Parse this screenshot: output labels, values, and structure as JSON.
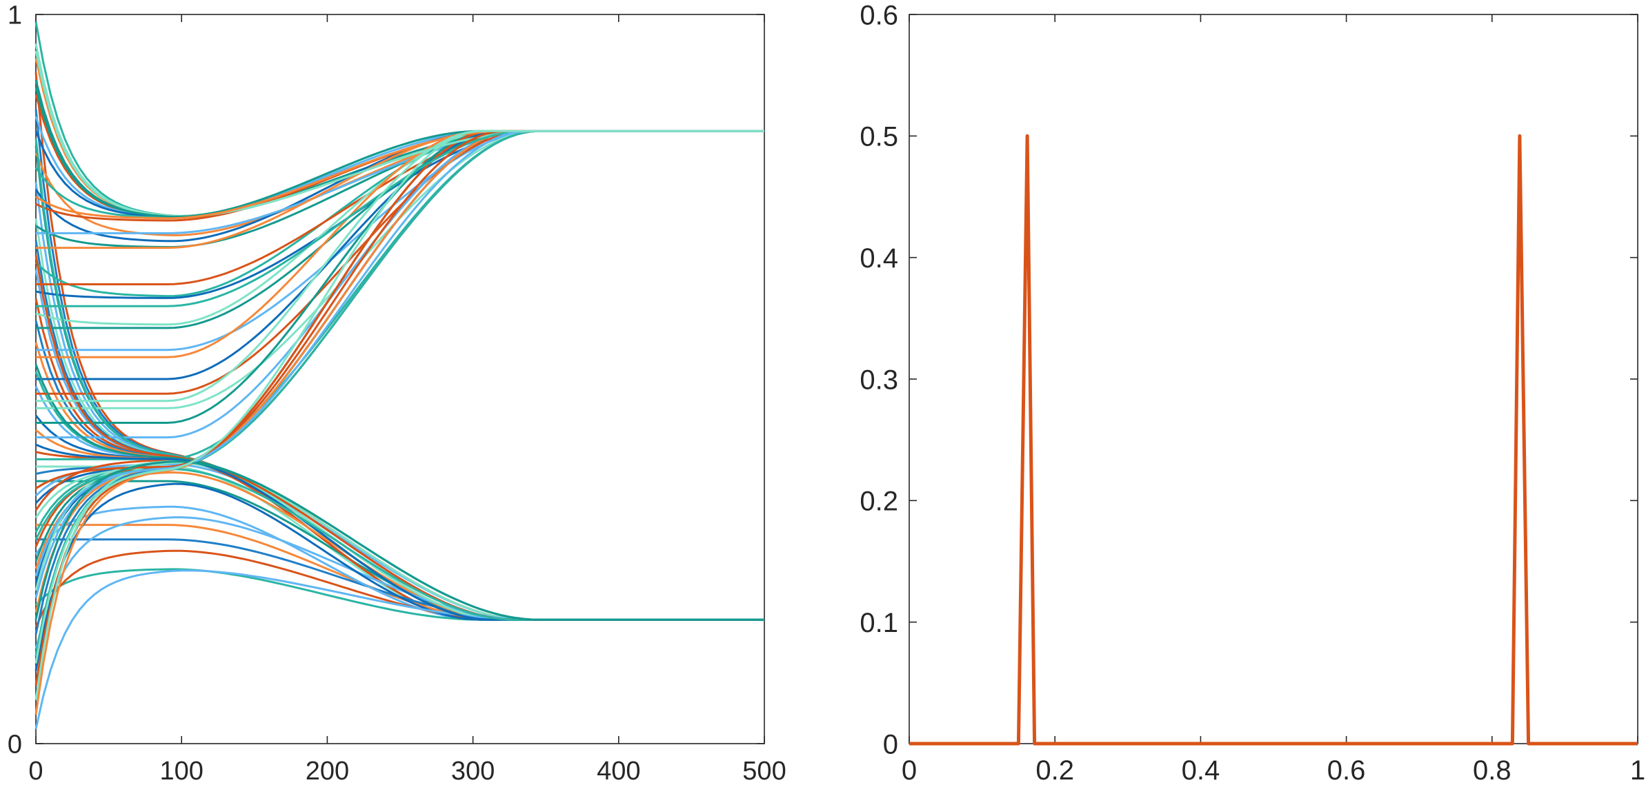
{
  "chart_data": [
    {
      "type": "line",
      "title": "",
      "xlabel": "",
      "ylabel": "",
      "xlim": [
        0,
        500
      ],
      "ylim": [
        0,
        1
      ],
      "xticks": [
        "0",
        "100",
        "200",
        "300",
        "400",
        "500"
      ],
      "yticks": [
        "0",
        "1"
      ],
      "grid": false,
      "legend": "none",
      "description_of_series": "about 100 trajectories starting between about 0.02 and 0.99 that split into two clusters and converge to about 0.84 and 0.17 by x≈330",
      "series": [
        {
          "start": 0.99,
          "cluster": "upper",
          "color": "#2ab5a4"
        },
        {
          "start": 0.96,
          "cluster": "upper",
          "color": "#7fe3c7"
        },
        {
          "start": 0.94,
          "cluster": "upper",
          "color": "#f5883a"
        },
        {
          "start": 0.92,
          "cluster": "lower",
          "color": "#d95319"
        },
        {
          "start": 0.91,
          "cluster": "upper",
          "color": "#159a8f"
        },
        {
          "start": 0.89,
          "cluster": "upper",
          "color": "#d95319"
        },
        {
          "start": 0.87,
          "cluster": "lower",
          "color": "#1f7fc7"
        },
        {
          "start": 0.86,
          "cluster": "upper",
          "color": "#5fb6f3"
        },
        {
          "start": 0.84,
          "cluster": "upper",
          "color": "#0e6cba"
        },
        {
          "start": 0.82,
          "cluster": "lower",
          "color": "#159a8f"
        },
        {
          "start": 0.81,
          "cluster": "upper",
          "color": "#f5883a"
        },
        {
          "start": 0.79,
          "cluster": "upper",
          "color": "#2ab5a4"
        },
        {
          "start": 0.77,
          "cluster": "lower",
          "color": "#5fb6f3"
        },
        {
          "start": 0.76,
          "cluster": "upper",
          "color": "#0e6cba"
        },
        {
          "start": 0.74,
          "cluster": "upper",
          "color": "#d95319"
        },
        {
          "start": 0.72,
          "cluster": "lower",
          "color": "#7fe3c7"
        },
        {
          "start": 0.71,
          "cluster": "upper",
          "color": "#159a8f"
        },
        {
          "start": 0.7,
          "cluster": "upper",
          "color": "#5fb6f3"
        },
        {
          "start": 0.69,
          "cluster": "lower",
          "color": "#1f7fc7"
        },
        {
          "start": 0.68,
          "cluster": "upper",
          "color": "#f5883a"
        },
        {
          "start": 0.66,
          "cluster": "upper",
          "color": "#2ab5a4"
        },
        {
          "start": 0.65,
          "cluster": "lower",
          "color": "#5fb6f3"
        },
        {
          "start": 0.63,
          "cluster": "upper",
          "color": "#d95319"
        },
        {
          "start": 0.62,
          "cluster": "upper",
          "color": "#0e6cba"
        },
        {
          "start": 0.61,
          "cluster": "lower",
          "color": "#d95319"
        },
        {
          "start": 0.59,
          "cluster": "upper",
          "color": "#7fe3c7"
        },
        {
          "start": 0.58,
          "cluster": "lower",
          "color": "#1f7fc7"
        },
        {
          "start": 0.57,
          "cluster": "upper",
          "color": "#159a8f"
        },
        {
          "start": 0.55,
          "cluster": "lower",
          "color": "#f5883a"
        },
        {
          "start": 0.54,
          "cluster": "upper",
          "color": "#5fb6f3"
        },
        {
          "start": 0.53,
          "cluster": "upper",
          "color": "#f5883a"
        },
        {
          "start": 0.51,
          "cluster": "lower",
          "color": "#2ab5a4"
        },
        {
          "start": 0.5,
          "cluster": "upper",
          "color": "#0e6cba"
        },
        {
          "start": 0.49,
          "cluster": "lower",
          "color": "#5fb6f3"
        },
        {
          "start": 0.48,
          "cluster": "upper",
          "color": "#d95319"
        },
        {
          "start": 0.46,
          "cluster": "upper",
          "color": "#7fe3c7"
        },
        {
          "start": 0.45,
          "cluster": "lower",
          "color": "#0e6cba"
        },
        {
          "start": 0.44,
          "cluster": "upper",
          "color": "#159a8f"
        },
        {
          "start": 0.43,
          "cluster": "lower",
          "color": "#f5883a"
        },
        {
          "start": 0.42,
          "cluster": "upper",
          "color": "#5fb6f3"
        },
        {
          "start": 0.4,
          "cluster": "lower",
          "color": "#d95319"
        },
        {
          "start": 0.39,
          "cluster": "upper",
          "color": "#2ab5a4"
        },
        {
          "start": 0.38,
          "cluster": "lower",
          "color": "#7fe3c7"
        },
        {
          "start": 0.37,
          "cluster": "upper",
          "color": "#1f7fc7"
        },
        {
          "start": 0.36,
          "cluster": "lower",
          "color": "#159a8f"
        },
        {
          "start": 0.35,
          "cluster": "upper",
          "color": "#f5883a"
        },
        {
          "start": 0.34,
          "cluster": "lower",
          "color": "#5fb6f3"
        },
        {
          "start": 0.33,
          "cluster": "upper",
          "color": "#0e6cba"
        },
        {
          "start": 0.32,
          "cluster": "lower",
          "color": "#d95319"
        },
        {
          "start": 0.31,
          "cluster": "upper",
          "color": "#7fe3c7"
        },
        {
          "start": 0.3,
          "cluster": "lower",
          "color": "#f5883a"
        },
        {
          "start": 0.29,
          "cluster": "upper",
          "color": "#2ab5a4"
        },
        {
          "start": 0.28,
          "cluster": "lower",
          "color": "#1f7fc7"
        },
        {
          "start": 0.27,
          "cluster": "upper",
          "color": "#d95319"
        },
        {
          "start": 0.26,
          "cluster": "lower",
          "color": "#5fb6f3"
        },
        {
          "start": 0.25,
          "cluster": "upper",
          "color": "#159a8f"
        },
        {
          "start": 0.24,
          "cluster": "lower",
          "color": "#f5883a"
        },
        {
          "start": 0.22,
          "cluster": "upper",
          "color": "#0e6cba"
        },
        {
          "start": 0.21,
          "cluster": "lower",
          "color": "#7fe3c7"
        },
        {
          "start": 0.2,
          "cluster": "upper",
          "color": "#5fb6f3"
        },
        {
          "start": 0.19,
          "cluster": "lower",
          "color": "#2ab5a4"
        },
        {
          "start": 0.18,
          "cluster": "upper",
          "color": "#f5883a"
        },
        {
          "start": 0.16,
          "cluster": "lower",
          "color": "#d95319"
        },
        {
          "start": 0.15,
          "cluster": "upper",
          "color": "#1f7fc7"
        },
        {
          "start": 0.13,
          "cluster": "lower",
          "color": "#5fb6f3"
        },
        {
          "start": 0.12,
          "cluster": "upper",
          "color": "#2ab5a4"
        },
        {
          "start": 0.1,
          "cluster": "lower",
          "color": "#0e6cba"
        },
        {
          "start": 0.08,
          "cluster": "upper",
          "color": "#d95319"
        },
        {
          "start": 0.06,
          "cluster": "lower",
          "color": "#7fe3c7"
        },
        {
          "start": 0.04,
          "cluster": "upper",
          "color": "#f5883a"
        },
        {
          "start": 0.02,
          "cluster": "lower",
          "color": "#5fb6f3"
        },
        {
          "start": 0.95,
          "cluster": "upper",
          "color": "#7fe3c7"
        },
        {
          "start": 0.9,
          "cluster": "upper",
          "color": "#159a8f"
        },
        {
          "start": 0.83,
          "cluster": "lower",
          "color": "#2ab5a4"
        },
        {
          "start": 0.75,
          "cluster": "upper",
          "color": "#f5883a"
        },
        {
          "start": 0.67,
          "cluster": "lower",
          "color": "#d95319"
        },
        {
          "start": 0.6,
          "cluster": "upper",
          "color": "#2ab5a4"
        },
        {
          "start": 0.52,
          "cluster": "lower",
          "color": "#159a8f"
        },
        {
          "start": 0.47,
          "cluster": "upper",
          "color": "#7fe3c7"
        },
        {
          "start": 0.41,
          "cluster": "lower",
          "color": "#0e6cba"
        },
        {
          "start": 0.35,
          "cluster": "upper",
          "color": "#d95319"
        },
        {
          "start": 0.28,
          "cluster": "lower",
          "color": "#2ab5a4"
        },
        {
          "start": 0.23,
          "cluster": "upper",
          "color": "#5fb6f3"
        },
        {
          "start": 0.17,
          "cluster": "lower",
          "color": "#159a8f"
        },
        {
          "start": 0.11,
          "cluster": "upper",
          "color": "#7fe3c7"
        }
      ],
      "convergence_levels": {
        "upper": 0.84,
        "lower": 0.17
      },
      "convergence_x": 330
    },
    {
      "type": "line",
      "title": "",
      "xlabel": "",
      "ylabel": "",
      "xlim": [
        0,
        1
      ],
      "ylim": [
        0,
        0.6
      ],
      "xticks": [
        "0",
        "0.2",
        "0.4",
        "0.6",
        "0.8",
        "1"
      ],
      "yticks": [
        "0",
        "0.1",
        "0.2",
        "0.3",
        "0.4",
        "0.5",
        "0.6"
      ],
      "grid": false,
      "legend": "none",
      "series": [
        {
          "color": "#d95319",
          "x": [
            0,
            0.15,
            0.162,
            0.172,
            0.828,
            0.838,
            0.85,
            1
          ],
          "y": [
            0,
            0,
            0.5,
            0,
            0,
            0.5,
            0,
            0
          ]
        }
      ]
    }
  ]
}
